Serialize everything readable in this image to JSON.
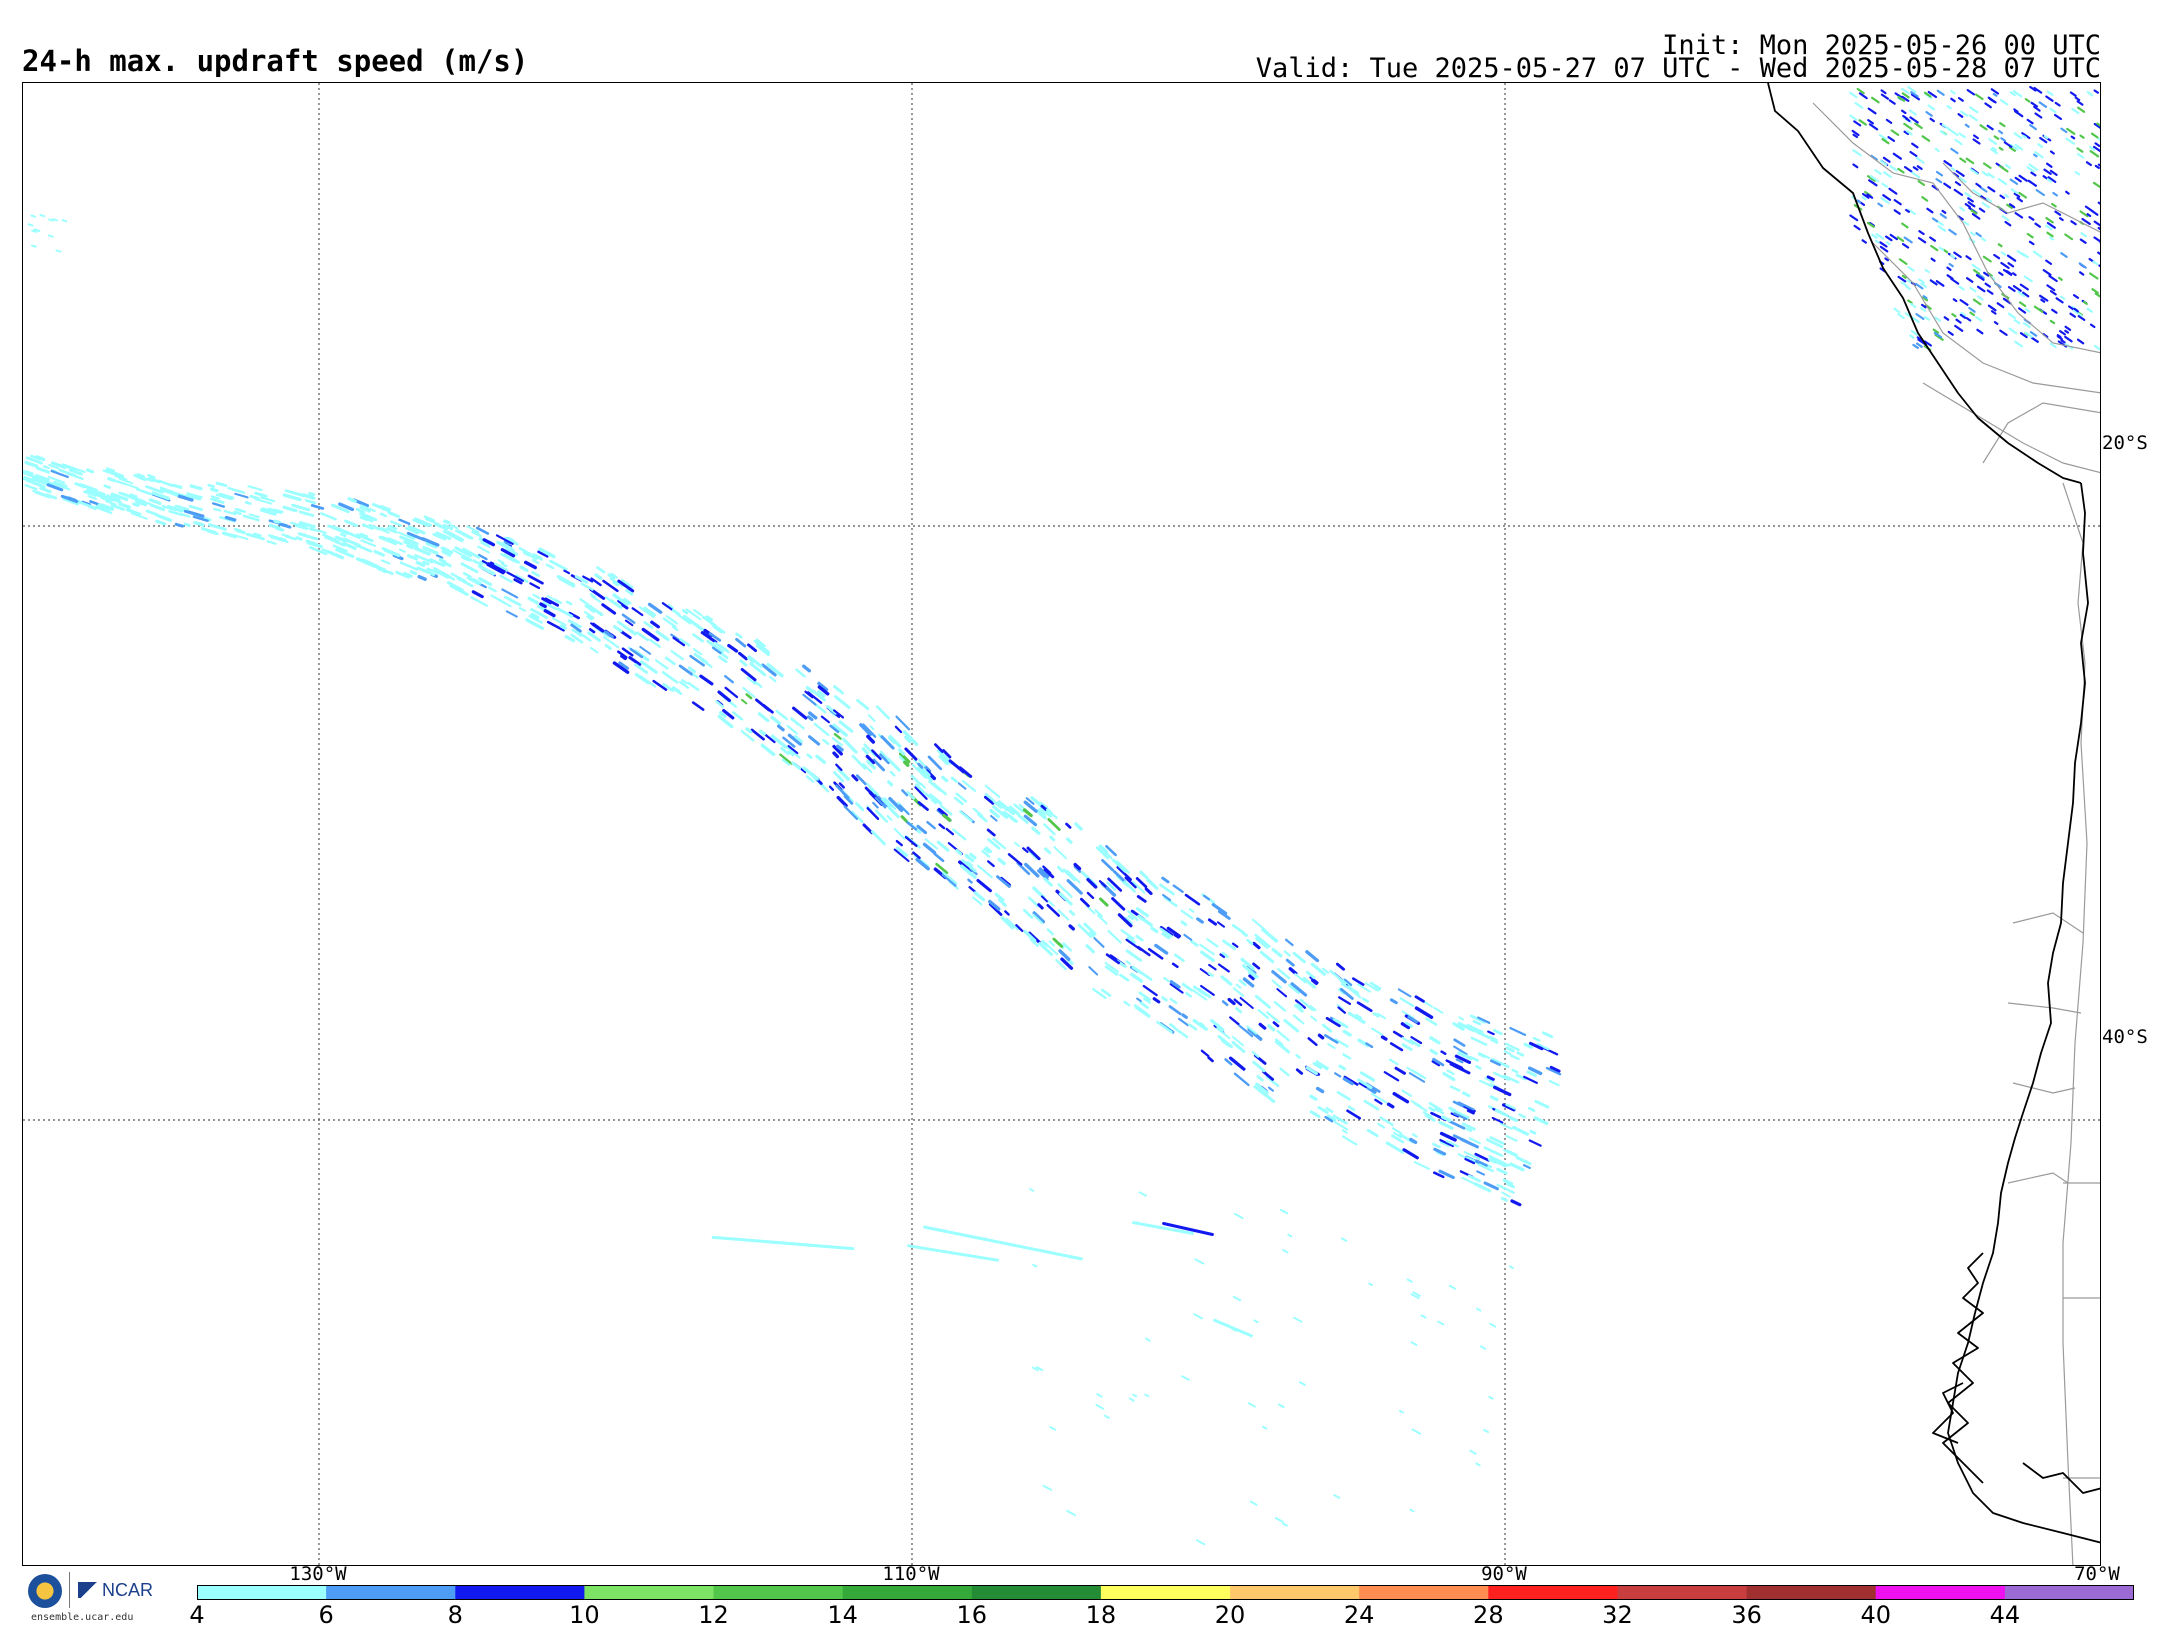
{
  "header": {
    "title": "24-h max. updraft speed (m/s)",
    "init": "Init: Mon 2025-05-26 00 UTC",
    "valid": "Valid: Tue 2025-05-27 07 UTC - Wed 2025-05-28 07 UTC"
  },
  "map": {
    "lat_labels": [
      "20°S",
      "40°S"
    ],
    "lon_labels": [
      "130°W",
      "110°W",
      "90°W",
      "70°W"
    ],
    "gridlines": "dotted",
    "features": [
      "west coast of South America",
      "Chile",
      "Peru",
      "Bolivia",
      "Argentina",
      "Pacific Ocean"
    ],
    "max_value_shown_mps": 16
  },
  "colorbar": {
    "ticks": [
      "4",
      "6",
      "8",
      "10",
      "12",
      "14",
      "16",
      "18",
      "20",
      "24",
      "28",
      "32",
      "36",
      "40",
      "44"
    ],
    "colors": [
      "#9bffff",
      "#4d9cf5",
      "#1219ef",
      "#7ce364",
      "#52c64b",
      "#34a838",
      "#238c34",
      "#ffff5e",
      "#ffc96b",
      "#ff8c50",
      "#ff2020",
      "#c83d3d",
      "#a03030",
      "#ee10ee",
      "#9c6ad4"
    ]
  },
  "logos": {
    "left": "NSF",
    "right": "NCAR",
    "url": "ensemble.ucar.edu"
  }
}
